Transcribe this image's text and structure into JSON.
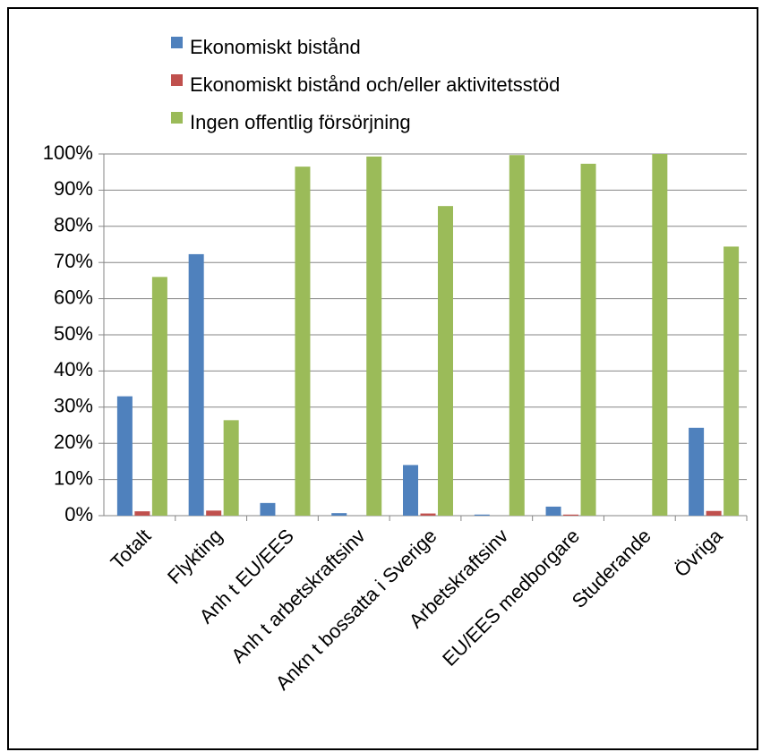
{
  "chart_data": {
    "type": "bar",
    "categories": [
      "Totalt",
      "Flykting",
      "Anh t EU/EES",
      "Anh t arbetskraftsinv",
      "Ankn t bossatta i Sverige",
      "Arbetskraftsinv",
      "EU/EES medborgare",
      "Studerande",
      "Övriga"
    ],
    "series": [
      {
        "name": "Ekonomiskt bistånd",
        "color": "#4F81BD",
        "values": [
          33,
          72.3,
          3.5,
          0.7,
          14,
          0.3,
          2.5,
          0,
          24.3
        ]
      },
      {
        "name": "Ekonomiskt bistånd och/eller aktivitetsstöd",
        "color": "#C0504D",
        "values": [
          1.2,
          1.4,
          0,
          0,
          0.6,
          0,
          0.3,
          0,
          1.3
        ]
      },
      {
        "name": "Ingen offentlig försörjning",
        "color": "#9BBB59",
        "values": [
          66,
          26.4,
          96.5,
          99.3,
          85.6,
          99.7,
          97.3,
          100,
          74.4
        ]
      }
    ],
    "yticks": [
      "0%",
      "10%",
      "20%",
      "30%",
      "40%",
      "50%",
      "60%",
      "70%",
      "80%",
      "90%",
      "100%"
    ],
    "ylim": [
      0,
      100
    ],
    "grid": true,
    "legend_position": "top"
  }
}
